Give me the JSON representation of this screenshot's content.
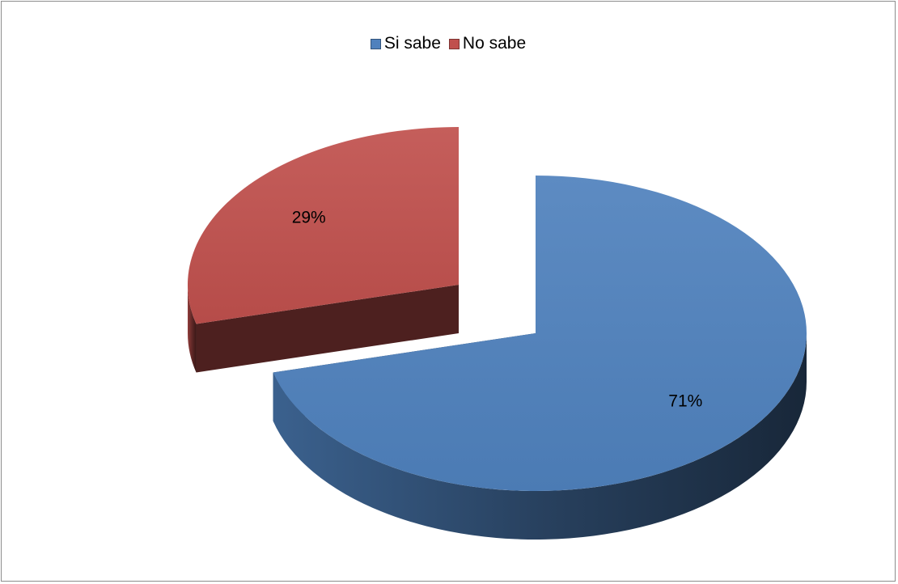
{
  "chart_data": {
    "type": "pie",
    "categories": [
      "Si sabe",
      "No sabe"
    ],
    "values": [
      71,
      29
    ],
    "data_labels": [
      "71%",
      "29%"
    ],
    "colors": [
      "#4f81bd",
      "#c0504d"
    ],
    "legend_position": "top",
    "style": "3d-exploded"
  }
}
